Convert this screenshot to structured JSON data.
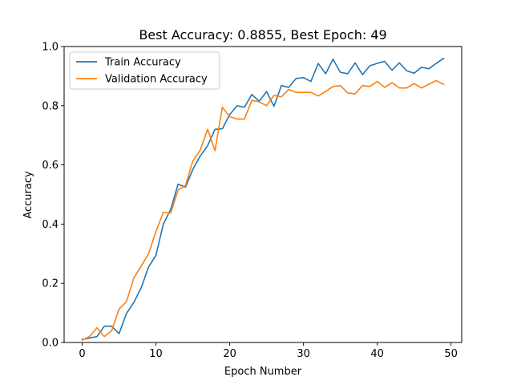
{
  "chart_data": {
    "type": "line",
    "title": "Best Accuracy: 0.8855, Best Epoch: 49",
    "xlabel": "Epoch Number",
    "ylabel": "Accuracy",
    "xlim": [
      -2.45,
      51.45
    ],
    "ylim": [
      0,
      1.0
    ],
    "xticks": [
      0,
      10,
      20,
      30,
      40,
      50
    ],
    "yticks": [
      0.0,
      0.2,
      0.4,
      0.6,
      0.8,
      1.0
    ],
    "xtick_labels": [
      "0",
      "10",
      "20",
      "30",
      "40",
      "50"
    ],
    "ytick_labels": [
      "0.0",
      "0.2",
      "0.4",
      "0.6",
      "0.8",
      "1.0"
    ],
    "grid": false,
    "legend_position": "top-left",
    "x": [
      0,
      1,
      2,
      3,
      4,
      5,
      6,
      7,
      8,
      9,
      10,
      11,
      12,
      13,
      14,
      15,
      16,
      17,
      18,
      19,
      20,
      21,
      22,
      23,
      24,
      25,
      26,
      27,
      28,
      29,
      30,
      31,
      32,
      33,
      34,
      35,
      36,
      37,
      38,
      39,
      40,
      41,
      42,
      43,
      44,
      45,
      46,
      47,
      48,
      49
    ],
    "series": [
      {
        "name": "Train Accuracy",
        "color": "#1f77b4",
        "values": [
          0.01,
          0.015,
          0.02,
          0.055,
          0.055,
          0.03,
          0.098,
          0.135,
          0.185,
          0.255,
          0.295,
          0.4,
          0.45,
          0.535,
          0.525,
          0.585,
          0.63,
          0.665,
          0.72,
          0.722,
          0.77,
          0.8,
          0.795,
          0.838,
          0.815,
          0.848,
          0.798,
          0.868,
          0.862,
          0.892,
          0.895,
          0.882,
          0.943,
          0.908,
          0.957,
          0.913,
          0.908,
          0.945,
          0.905,
          0.935,
          0.943,
          0.95,
          0.92,
          0.945,
          0.918,
          0.91,
          0.93,
          0.925,
          0.943,
          0.96
        ]
      },
      {
        "name": "Validation Accuracy",
        "color": "#ff7f0e",
        "values": [
          0.008,
          0.02,
          0.05,
          0.02,
          0.04,
          0.113,
          0.138,
          0.218,
          0.258,
          0.3,
          0.375,
          0.44,
          0.437,
          0.515,
          0.53,
          0.613,
          0.65,
          0.72,
          0.648,
          0.795,
          0.763,
          0.755,
          0.755,
          0.818,
          0.813,
          0.8,
          0.835,
          0.83,
          0.855,
          0.845,
          0.845,
          0.845,
          0.833,
          0.848,
          0.865,
          0.868,
          0.843,
          0.84,
          0.868,
          0.865,
          0.882,
          0.862,
          0.878,
          0.86,
          0.86,
          0.875,
          0.86,
          0.873,
          0.885,
          0.872
        ]
      }
    ]
  }
}
